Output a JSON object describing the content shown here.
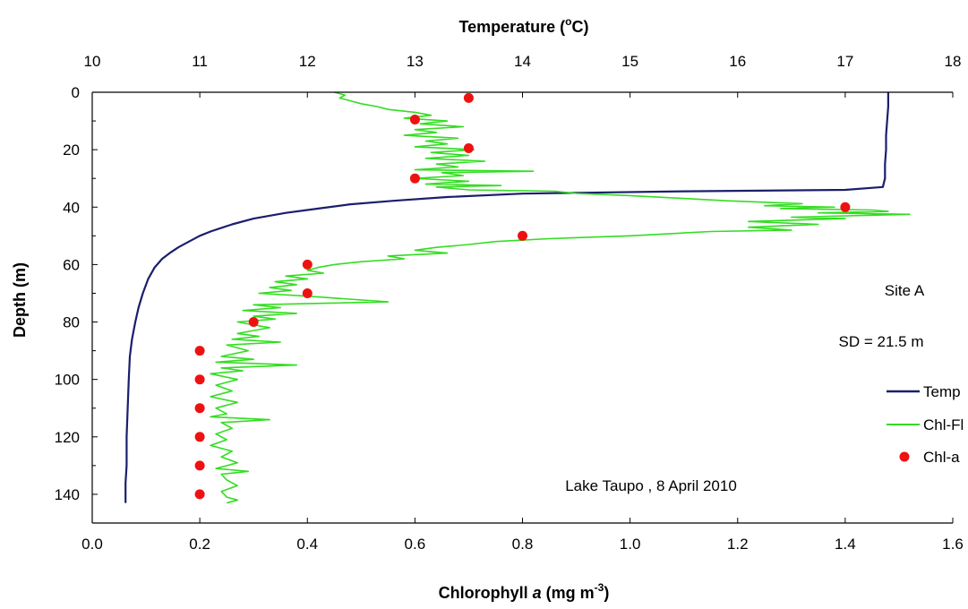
{
  "chart_data": {
    "type": "scatter",
    "title": "",
    "top_axis": {
      "label": "Temperature (oC)",
      "label_main": "Temperature (",
      "label_sup": "o",
      "label_tail": "C)",
      "range": [
        10,
        18
      ],
      "ticks": [
        "10",
        "11",
        "12",
        "13",
        "14",
        "15",
        "16",
        "17",
        "18"
      ]
    },
    "bottom_axis": {
      "label": "Chlorophyll a (mg m-3)",
      "label_main": "Chlorophyll ",
      "label_italic": "a",
      "label_units": " (mg m",
      "label_sup": "-3",
      "label_close": ")",
      "range": [
        0.0,
        1.6
      ],
      "ticks": [
        "0.0",
        "0.2",
        "0.4",
        "0.6",
        "0.8",
        "1.0",
        "1.2",
        "1.4",
        "1.6"
      ]
    },
    "y_axis": {
      "label": "Depth (m)",
      "range": [
        0,
        150
      ],
      "inverted": true,
      "ticks": [
        "0",
        "20",
        "40",
        "60",
        "80",
        "100",
        "120",
        "140"
      ]
    },
    "legend": {
      "placement": "right",
      "entries": [
        {
          "name": "Temp",
          "color": "#1a1f6b",
          "marker": "line"
        },
        {
          "name": "Chl-Fl",
          "color": "#33dd22",
          "marker": "line"
        },
        {
          "name": "Chl-a",
          "color": "#ee1111",
          "marker": "dot"
        }
      ]
    },
    "annotations": {
      "site": "Site A",
      "sd": "SD = 21.5 m",
      "caption": "Lake Taupo , 8 April 2010"
    },
    "series": [
      {
        "name": "Temp",
        "axis": "top",
        "color": "#1a1f6b",
        "points": [
          [
            17.4,
            0
          ],
          [
            17.4,
            5
          ],
          [
            17.39,
            10
          ],
          [
            17.38,
            15
          ],
          [
            17.38,
            20
          ],
          [
            17.37,
            25
          ],
          [
            17.37,
            30
          ],
          [
            17.35,
            33
          ],
          [
            17.0,
            34
          ],
          [
            15.5,
            34.5
          ],
          [
            14.0,
            35.3
          ],
          [
            13.3,
            36.5
          ],
          [
            12.8,
            37.8
          ],
          [
            12.4,
            39
          ],
          [
            12.1,
            40.5
          ],
          [
            11.8,
            42
          ],
          [
            11.5,
            44
          ],
          [
            11.3,
            46
          ],
          [
            11.1,
            48.5
          ],
          [
            11.0,
            50
          ],
          [
            10.9,
            52
          ],
          [
            10.8,
            54
          ],
          [
            10.72,
            56
          ],
          [
            10.65,
            58
          ],
          [
            10.58,
            61
          ],
          [
            10.52,
            65
          ],
          [
            10.47,
            70
          ],
          [
            10.43,
            75
          ],
          [
            10.4,
            80
          ],
          [
            10.37,
            86
          ],
          [
            10.35,
            92
          ],
          [
            10.34,
            100
          ],
          [
            10.33,
            110
          ],
          [
            10.32,
            120
          ],
          [
            10.32,
            130
          ],
          [
            10.31,
            136
          ],
          [
            10.31,
            143
          ]
        ]
      },
      {
        "name": "Chl-Fl",
        "axis": "bottom",
        "color": "#33dd22",
        "points": [
          [
            0.45,
            0
          ],
          [
            0.47,
            1
          ],
          [
            0.46,
            2
          ],
          [
            0.48,
            3
          ],
          [
            0.5,
            4
          ],
          [
            0.53,
            5
          ],
          [
            0.55,
            6
          ],
          [
            0.6,
            7
          ],
          [
            0.63,
            8
          ],
          [
            0.58,
            9
          ],
          [
            0.66,
            10
          ],
          [
            0.61,
            11
          ],
          [
            0.69,
            12
          ],
          [
            0.6,
            13
          ],
          [
            0.64,
            14
          ],
          [
            0.58,
            15
          ],
          [
            0.68,
            16
          ],
          [
            0.62,
            17
          ],
          [
            0.66,
            18
          ],
          [
            0.6,
            19
          ],
          [
            0.71,
            20
          ],
          [
            0.63,
            21
          ],
          [
            0.7,
            22
          ],
          [
            0.62,
            23
          ],
          [
            0.73,
            24
          ],
          [
            0.64,
            25
          ],
          [
            0.68,
            26
          ],
          [
            0.6,
            27
          ],
          [
            0.82,
            27.5
          ],
          [
            0.65,
            28
          ],
          [
            0.69,
            29
          ],
          [
            0.6,
            30
          ],
          [
            0.7,
            31
          ],
          [
            0.62,
            32
          ],
          [
            0.76,
            32.5
          ],
          [
            0.64,
            33
          ],
          [
            0.7,
            34
          ],
          [
            0.86,
            34.5
          ],
          [
            0.9,
            35.2
          ],
          [
            1.0,
            36
          ],
          [
            1.1,
            37
          ],
          [
            1.18,
            37.8
          ],
          [
            1.25,
            38.3
          ],
          [
            1.32,
            38.8
          ],
          [
            1.25,
            39.5
          ],
          [
            1.38,
            40
          ],
          [
            1.28,
            40.5
          ],
          [
            1.45,
            41
          ],
          [
            1.48,
            41.5
          ],
          [
            1.35,
            42
          ],
          [
            1.52,
            42.5
          ],
          [
            1.3,
            43.5
          ],
          [
            1.4,
            44
          ],
          [
            1.22,
            45
          ],
          [
            1.35,
            46
          ],
          [
            1.22,
            47
          ],
          [
            1.3,
            48
          ],
          [
            1.15,
            48.5
          ],
          [
            1.1,
            49
          ],
          [
            1.0,
            50
          ],
          [
            0.85,
            51
          ],
          [
            0.75,
            52
          ],
          [
            0.7,
            53
          ],
          [
            0.64,
            54
          ],
          [
            0.6,
            55
          ],
          [
            0.66,
            56
          ],
          [
            0.55,
            57
          ],
          [
            0.58,
            58
          ],
          [
            0.5,
            59
          ],
          [
            0.45,
            60
          ],
          [
            0.42,
            61
          ],
          [
            0.4,
            62
          ],
          [
            0.43,
            63
          ],
          [
            0.36,
            64
          ],
          [
            0.4,
            65
          ],
          [
            0.34,
            66
          ],
          [
            0.38,
            67
          ],
          [
            0.33,
            68
          ],
          [
            0.37,
            69
          ],
          [
            0.31,
            70
          ],
          [
            0.4,
            71
          ],
          [
            0.55,
            73
          ],
          [
            0.3,
            74
          ],
          [
            0.35,
            75
          ],
          [
            0.28,
            76
          ],
          [
            0.38,
            77
          ],
          [
            0.3,
            78
          ],
          [
            0.34,
            79
          ],
          [
            0.27,
            80
          ],
          [
            0.33,
            82
          ],
          [
            0.27,
            84
          ],
          [
            0.31,
            85
          ],
          [
            0.26,
            86
          ],
          [
            0.35,
            87
          ],
          [
            0.25,
            88
          ],
          [
            0.29,
            90
          ],
          [
            0.24,
            92
          ],
          [
            0.3,
            93
          ],
          [
            0.23,
            94
          ],
          [
            0.38,
            95
          ],
          [
            0.24,
            96
          ],
          [
            0.28,
            97
          ],
          [
            0.22,
            98
          ],
          [
            0.27,
            100
          ],
          [
            0.23,
            102
          ],
          [
            0.26,
            104
          ],
          [
            0.22,
            106
          ],
          [
            0.27,
            108
          ],
          [
            0.23,
            110
          ],
          [
            0.25,
            112
          ],
          [
            0.22,
            113
          ],
          [
            0.33,
            114
          ],
          [
            0.24,
            115
          ],
          [
            0.26,
            117
          ],
          [
            0.23,
            119
          ],
          [
            0.25,
            121
          ],
          [
            0.22,
            123
          ],
          [
            0.26,
            125
          ],
          [
            0.24,
            127
          ],
          [
            0.27,
            129
          ],
          [
            0.23,
            131
          ],
          [
            0.29,
            132
          ],
          [
            0.24,
            133
          ],
          [
            0.25,
            135
          ],
          [
            0.27,
            137
          ],
          [
            0.24,
            139
          ],
          [
            0.25,
            141
          ],
          [
            0.27,
            142
          ],
          [
            0.25,
            143
          ]
        ]
      },
      {
        "name": "Chl-a",
        "axis": "bottom",
        "color": "#ee1111",
        "points": [
          [
            0.7,
            2
          ],
          [
            0.6,
            9.5
          ],
          [
            0.7,
            19.5
          ],
          [
            0.6,
            30
          ],
          [
            1.4,
            40
          ],
          [
            0.8,
            50
          ],
          [
            0.4,
            60
          ],
          [
            0.4,
            70
          ],
          [
            0.3,
            80
          ],
          [
            0.2,
            90
          ],
          [
            0.2,
            100
          ],
          [
            0.2,
            110
          ],
          [
            0.2,
            120
          ],
          [
            0.2,
            130
          ],
          [
            0.2,
            140
          ]
        ]
      }
    ]
  }
}
